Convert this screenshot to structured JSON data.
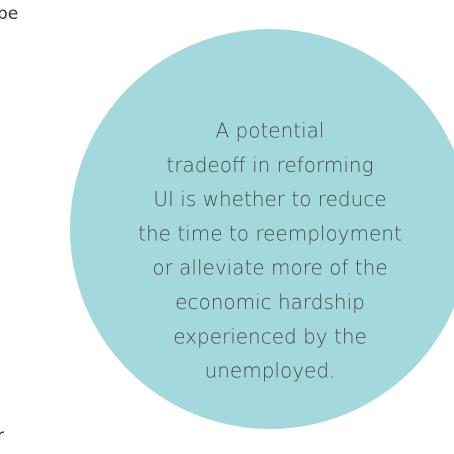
{
  "fragments": {
    "top": "pe",
    "bottom": "r"
  },
  "callout": {
    "lines": [
      "A potential",
      "tradeoff in reforming",
      "UI is whether to reduce",
      "the time to reemployment",
      "or alleviate more of the",
      "economic hardship",
      "experienced by the",
      "unemployed."
    ]
  }
}
